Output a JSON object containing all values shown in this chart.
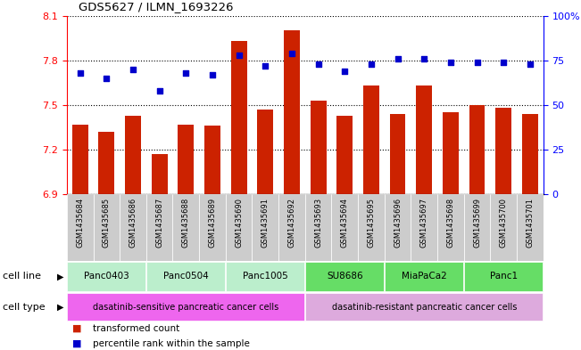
{
  "title": "GDS5627 / ILMN_1693226",
  "samples": [
    "GSM1435684",
    "GSM1435685",
    "GSM1435686",
    "GSM1435687",
    "GSM1435688",
    "GSM1435689",
    "GSM1435690",
    "GSM1435691",
    "GSM1435692",
    "GSM1435693",
    "GSM1435694",
    "GSM1435695",
    "GSM1435696",
    "GSM1435697",
    "GSM1435698",
    "GSM1435699",
    "GSM1435700",
    "GSM1435701"
  ],
  "bar_values": [
    7.37,
    7.32,
    7.43,
    7.17,
    7.37,
    7.36,
    7.93,
    7.47,
    8.0,
    7.53,
    7.43,
    7.63,
    7.44,
    7.63,
    7.45,
    7.5,
    7.48,
    7.44
  ],
  "dot_values": [
    68,
    65,
    70,
    58,
    68,
    67,
    78,
    72,
    79,
    73,
    69,
    73,
    76,
    76,
    74,
    74,
    74,
    73
  ],
  "bar_color": "#cc2200",
  "dot_color": "#0000cc",
  "ylim_left": [
    6.9,
    8.1
  ],
  "ylim_right": [
    0,
    100
  ],
  "yticks_left": [
    6.9,
    7.2,
    7.5,
    7.8,
    8.1
  ],
  "yticks_right": [
    0,
    25,
    50,
    75,
    100
  ],
  "ytick_labels_right": [
    "0",
    "25",
    "50",
    "75",
    "100%"
  ],
  "cell_lines": [
    {
      "label": "Panc0403",
      "start": 0,
      "end": 2,
      "color": "#bbeecc"
    },
    {
      "label": "Panc0504",
      "start": 3,
      "end": 5,
      "color": "#bbeecc"
    },
    {
      "label": "Panc1005",
      "start": 6,
      "end": 8,
      "color": "#bbeecc"
    },
    {
      "label": "SU8686",
      "start": 9,
      "end": 11,
      "color": "#66dd66"
    },
    {
      "label": "MiaPaCa2",
      "start": 12,
      "end": 14,
      "color": "#66dd66"
    },
    {
      "label": "Panc1",
      "start": 15,
      "end": 17,
      "color": "#66dd66"
    }
  ],
  "cell_types": [
    {
      "label": "dasatinib-sensitive pancreatic cancer cells",
      "start": 0,
      "end": 8,
      "color": "#ee66ee"
    },
    {
      "label": "dasatinib-resistant pancreatic cancer cells",
      "start": 9,
      "end": 17,
      "color": "#ddaadd"
    }
  ],
  "cell_line_label": "cell line",
  "cell_type_label": "cell type",
  "legend_items": [
    {
      "color": "#cc2200",
      "label": "transformed count"
    },
    {
      "color": "#0000cc",
      "label": "percentile rank within the sample"
    }
  ],
  "grid_color": "black",
  "grid_style": "dotted",
  "sample_row_color": "#cccccc"
}
